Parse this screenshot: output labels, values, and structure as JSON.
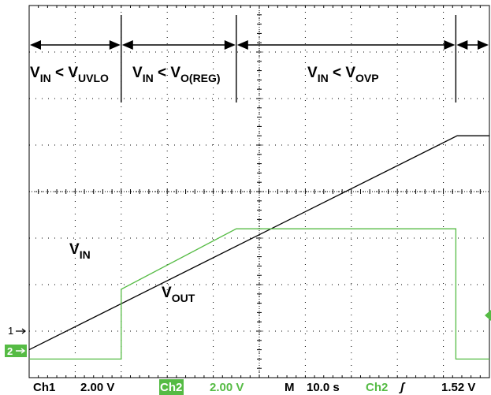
{
  "chart_data": {
    "type": "line",
    "title": "",
    "xlabel": "",
    "ylabel": "",
    "grid": true,
    "divisions": {
      "x": 10,
      "y": 8
    },
    "x_unit": "div",
    "y_unit": "div",
    "xlim": [
      0,
      10
    ],
    "ylim": [
      -4,
      4
    ],
    "series": [
      {
        "key": "vin",
        "name": "V_IN",
        "color": "#000000",
        "x": [
          0.0,
          9.3,
          9.6,
          10.0
        ],
        "y": [
          -3.4,
          1.2,
          1.2,
          1.2
        ]
      },
      {
        "key": "vout",
        "name": "V_OUT",
        "color": "#55bb44",
        "x": [
          0.0,
          2.0,
          2.0,
          4.5,
          9.27,
          9.27,
          10.0
        ],
        "y": [
          -3.6,
          -3.6,
          -2.1,
          -0.8,
          -0.8,
          -3.6,
          -3.6
        ]
      }
    ],
    "region_markers": [
      2.0,
      4.5,
      9.27
    ],
    "region_labels": [
      {
        "main": "V",
        "sub": "IN",
        "mid": " < V",
        "sub2": "UVLO"
      },
      {
        "main": "V",
        "sub": "IN",
        "mid": " < V",
        "sub2": "O(REG)"
      },
      {
        "main": "V",
        "sub": "IN",
        "mid": " < V",
        "sub2": "OVP"
      }
    ],
    "trace_labels": [
      {
        "main": "V",
        "sub": "IN"
      },
      {
        "main": "V",
        "sub": "OUT"
      }
    ],
    "channel_markers": {
      "ch1": "1",
      "ch2": "2"
    },
    "status_bar": {
      "ch1_label": "Ch1",
      "ch1_scale": "2.00 V",
      "ch2_label": "Ch2",
      "ch2_scale": "2.00 V",
      "time_label": "M",
      "time_scale": "10.0 s",
      "trig_source": "Ch2",
      "trig_slope": "ʃ",
      "trig_level": "1.52 V"
    },
    "colors": {
      "ch1": "#000000",
      "ch2": "#55bb44",
      "grid": "#000000",
      "background": "#ffffff"
    }
  }
}
